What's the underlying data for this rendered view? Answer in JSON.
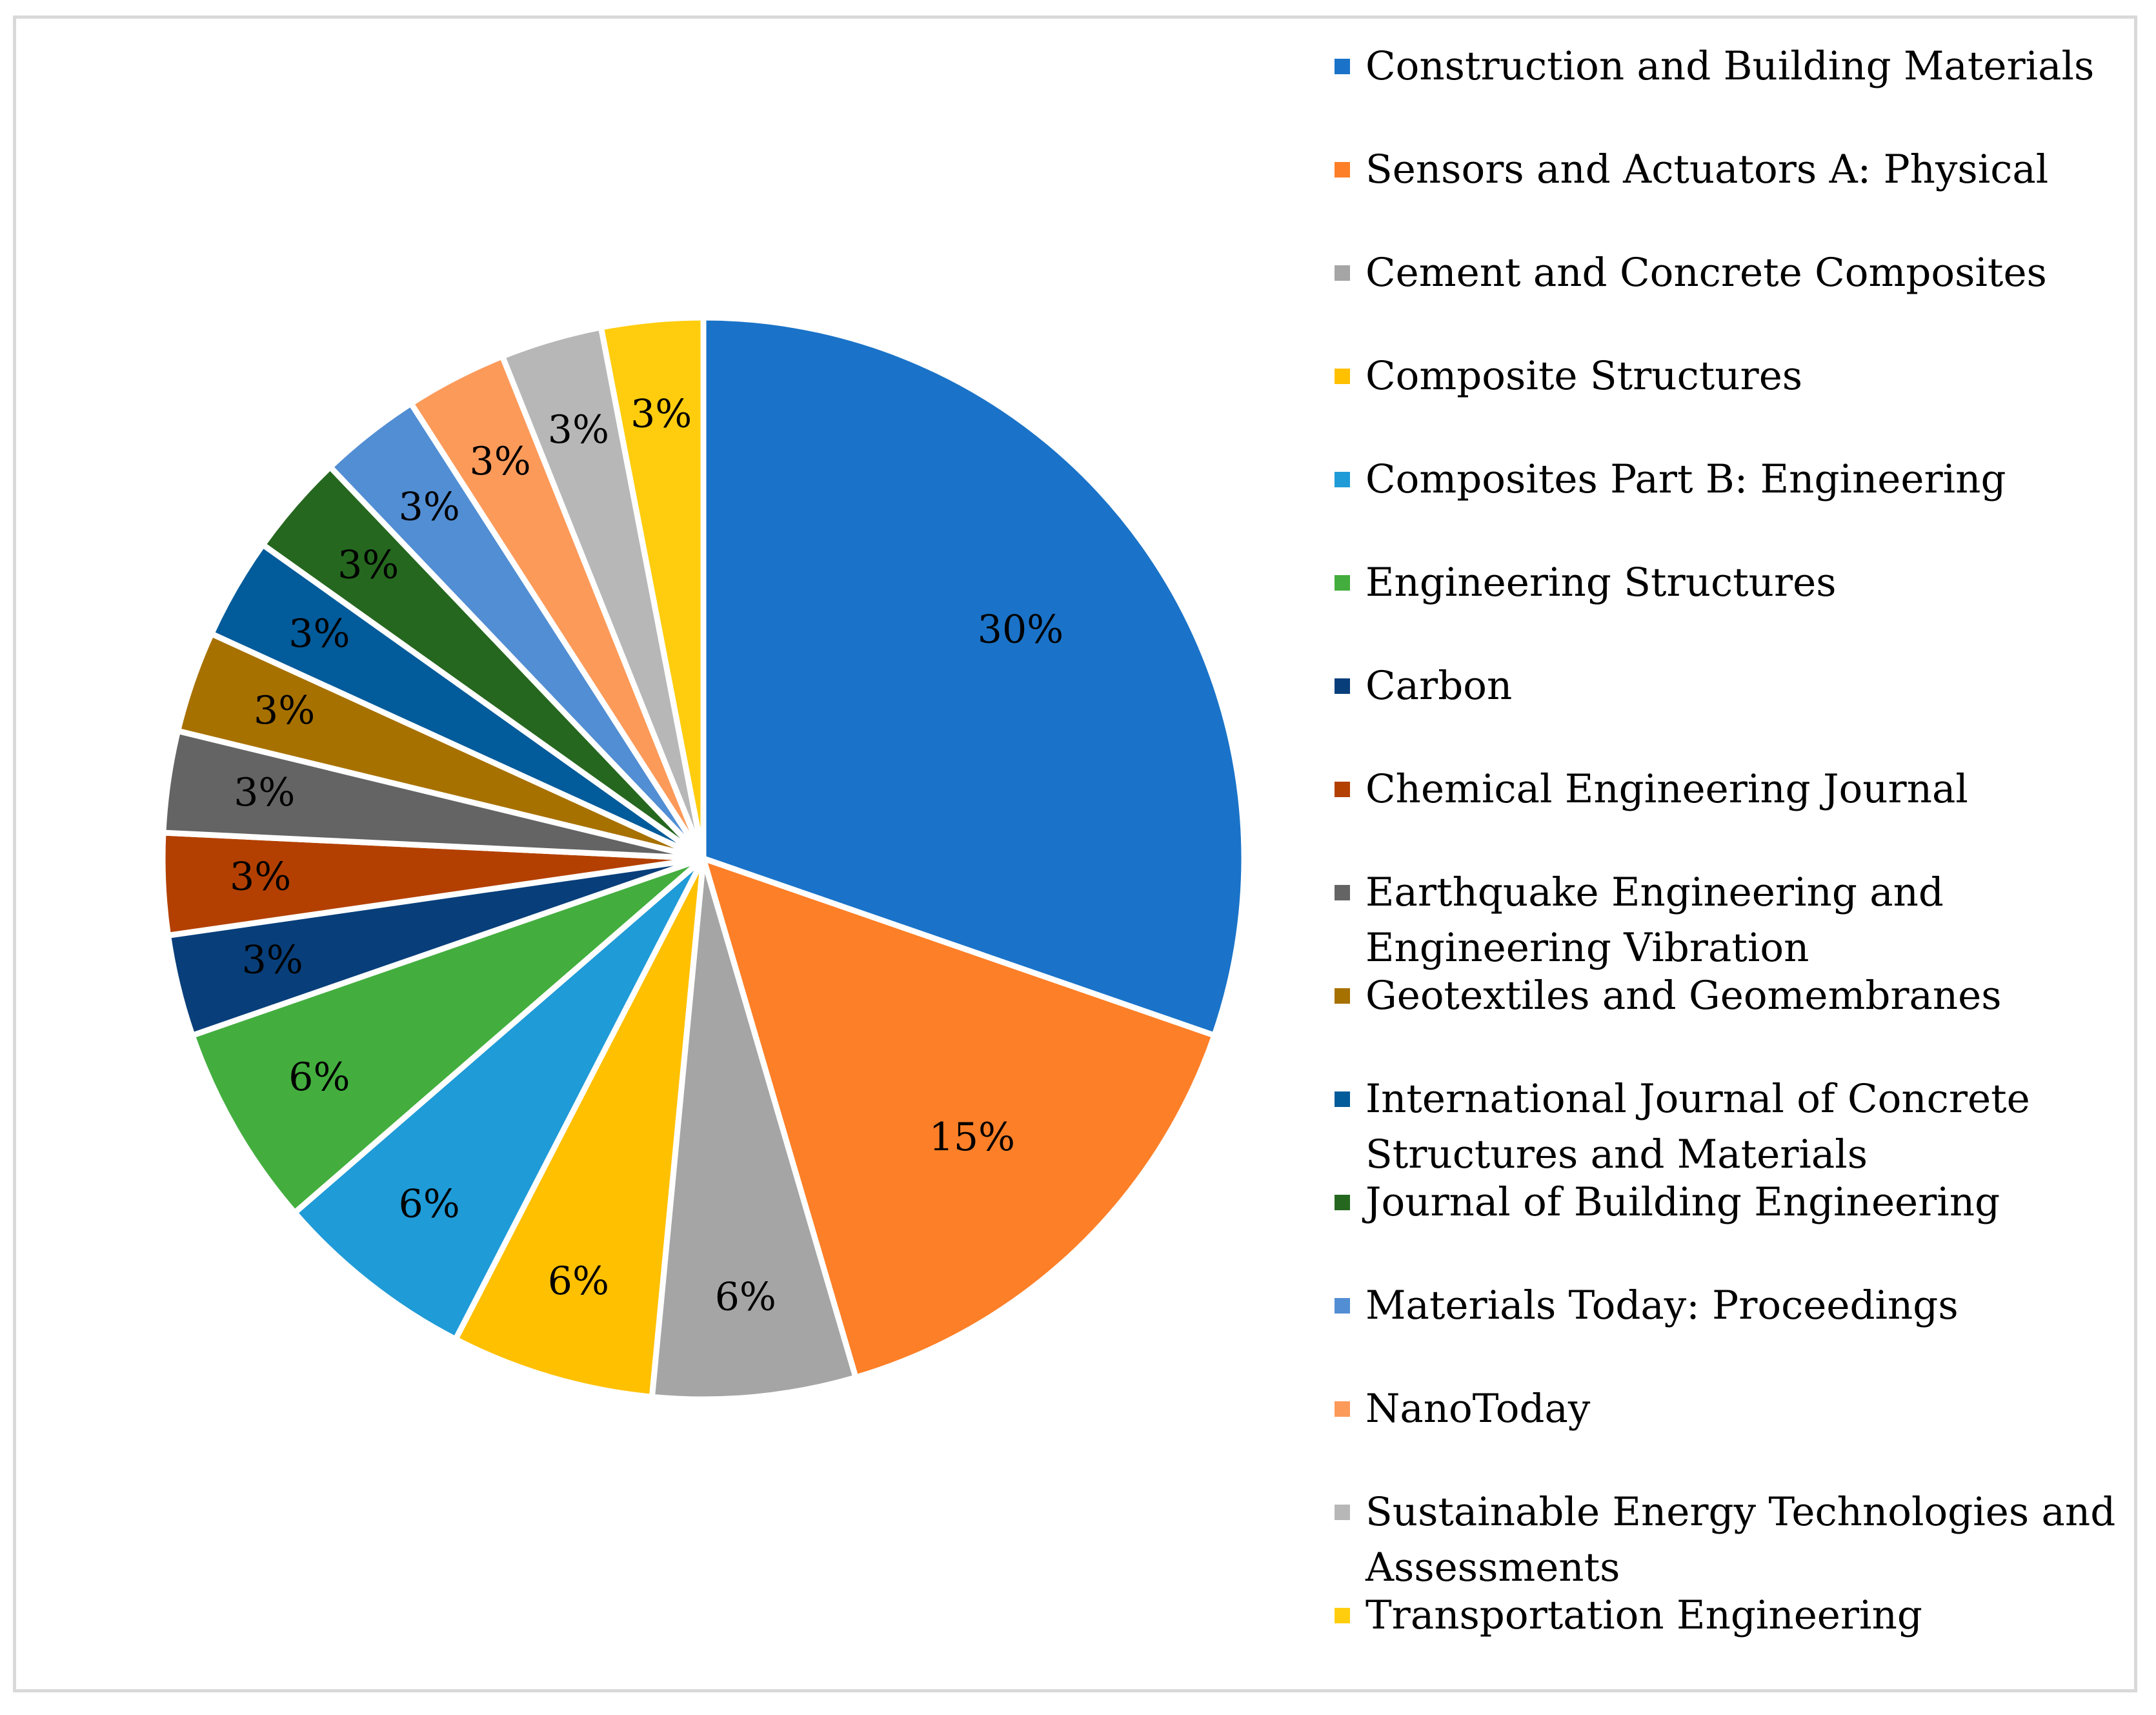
{
  "chart_data": {
    "type": "pie",
    "title": "",
    "start_angle_deg": 0,
    "direction": "clockwise",
    "legend_position": "right",
    "slices": [
      {
        "label": "Construction and Building Materials",
        "value": 30,
        "display": "30%",
        "color": "#1a73c8"
      },
      {
        "label": "Sensors and Actuators A: Physical",
        "value": 15,
        "display": "15%",
        "color": "#fd7f27"
      },
      {
        "label": "Cement and Concrete Composites",
        "value": 6,
        "display": "6%",
        "color": "#a5a5a5"
      },
      {
        "label": "Composite Structures",
        "value": 6,
        "display": "6%",
        "color": "#ffc000"
      },
      {
        "label": "Composites Part B: Engineering",
        "value": 6,
        "display": "6%",
        "color": "#1f9bd7"
      },
      {
        "label": "Engineering Structures",
        "value": 6,
        "display": "6%",
        "color": "#43ae3e"
      },
      {
        "label": "Carbon",
        "value": 3,
        "display": "3%",
        "color": "#083f7a"
      },
      {
        "label": "Chemical Engineering Journal",
        "value": 3,
        "display": "3%",
        "color": "#b34000"
      },
      {
        "label": "Earthquake Engineering and Engineering Vibration",
        "value": 3,
        "display": "3%",
        "color": "#646464"
      },
      {
        "label": "Geotextiles and Geomembranes",
        "value": 3,
        "display": "3%",
        "color": "#a77100"
      },
      {
        "label": "International Journal of Concrete Structures and Materials",
        "value": 3,
        "display": "3%",
        "color": "#025b9a"
      },
      {
        "label": "Journal of Building Engineering",
        "value": 3,
        "display": "3%",
        "color": "#25671f"
      },
      {
        "label": "Materials Today: Proceedings",
        "value": 3,
        "display": "3%",
        "color": "#528ed3"
      },
      {
        "label": "NanoToday",
        "value": 3,
        "display": "3%",
        "color": "#fc9a5a"
      },
      {
        "label": "Sustainable Energy Technologies and Assessments",
        "value": 3,
        "display": "3%",
        "color": "#b7b7b7"
      },
      {
        "label": "Transportation Engineering",
        "value": 3,
        "display": "3%",
        "color": "#ffcd0e"
      }
    ]
  }
}
